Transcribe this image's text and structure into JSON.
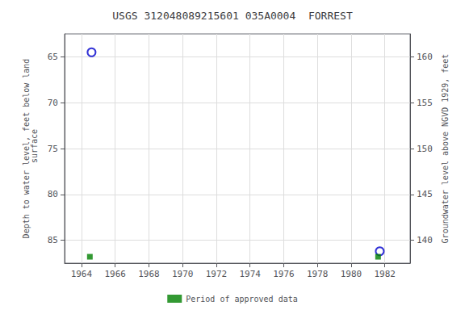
{
  "chart_data": {
    "type": "scatter",
    "title": "USGS 312048089215601 035A0004  FORREST",
    "ylabel": "Depth to water level, feet below land\n surface",
    "y2label": "Groundwater level above NGVD 1929, feet",
    "xlim": [
      1963.0,
      1983.5
    ],
    "xticks": [
      1964,
      1966,
      1968,
      1970,
      1972,
      1974,
      1976,
      1978,
      1980,
      1982
    ],
    "ylim": [
      87.5,
      62.5
    ],
    "yticks": [
      65,
      70,
      75,
      80,
      85
    ],
    "y2lim": [
      137.5,
      162.5
    ],
    "y2ticks": [
      160,
      155,
      150,
      145,
      140
    ],
    "grid": true,
    "legend": "bottom",
    "series": [
      {
        "color": "#0000cc",
        "marker": "open_circle",
        "x": [
          1964.6,
          1981.7
        ],
        "values": [
          64.5,
          86.2
        ]
      },
      {
        "name": "Period of approved data",
        "color": "#008000",
        "marker": "square",
        "x": [
          1964.5,
          1981.6
        ],
        "values": [
          86.8,
          86.8
        ]
      }
    ]
  }
}
